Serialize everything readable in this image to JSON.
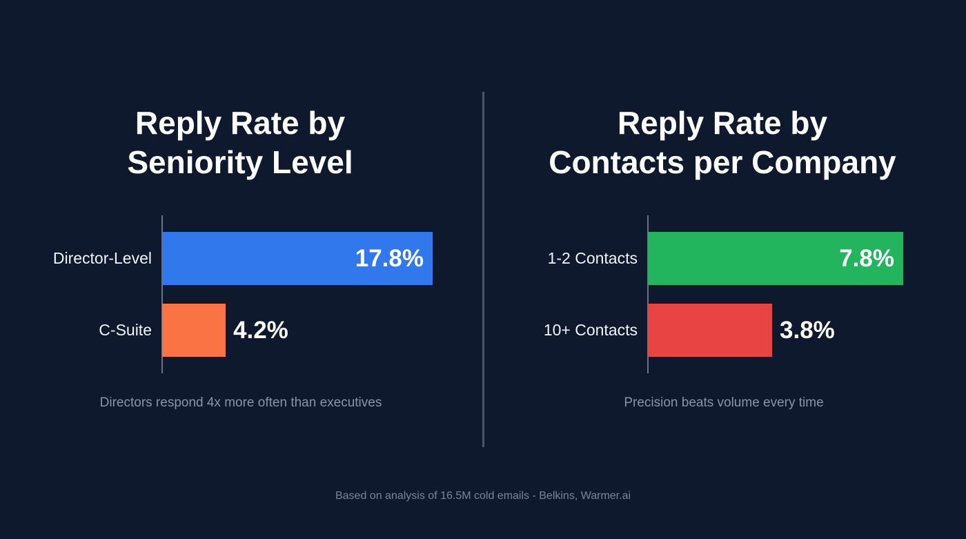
{
  "chart_data": [
    {
      "type": "bar",
      "orientation": "horizontal",
      "title": "Reply Rate by Seniority Level",
      "categories": [
        "Director-Level",
        "C-Suite"
      ],
      "values": [
        17.8,
        4.2
      ],
      "value_labels": [
        "17.8%",
        "4.2%"
      ],
      "colors": [
        "#3178ec",
        "#f97345"
      ],
      "subtitle": "Directors respond 4x more often than executives",
      "unit": "%"
    },
    {
      "type": "bar",
      "orientation": "horizontal",
      "title": "Reply Rate by Contacts per Company",
      "categories": [
        "1-2 Contacts",
        "10+ Contacts"
      ],
      "values": [
        7.8,
        3.8
      ],
      "value_labels": [
        "7.8%",
        "3.8%"
      ],
      "colors": [
        "#22b55e",
        "#e84444"
      ],
      "subtitle": "Precision beats volume every time",
      "unit": "%"
    }
  ],
  "footer": "Based on analysis of 16.5M cold emails - Belkins, Warmer.ai"
}
